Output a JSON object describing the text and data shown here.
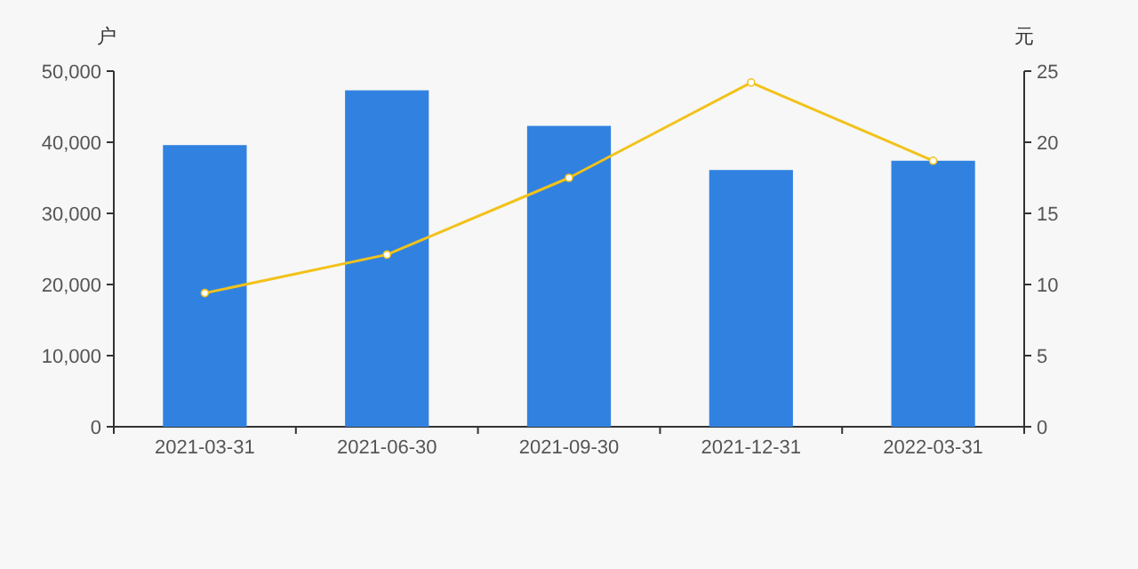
{
  "chart_data": {
    "type": "bar",
    "ylabel": "户",
    "y2label": "元",
    "categories": [
      "2021-03-31",
      "2021-06-30",
      "2021-09-30",
      "2021-12-31",
      "2022-03-31"
    ],
    "series": [
      {
        "color": "#3182e0",
        "values": [
          39600,
          47300,
          42300,
          36100,
          37400
        ]
      },
      {
        "type": "line",
        "axis": "y2",
        "color": "#f2c21a",
        "marker": "circle",
        "values": [
          9.4,
          12.1,
          17.5,
          24.2,
          18.7
        ]
      }
    ],
    "ylim": [
      0,
      50000
    ],
    "yticks": [
      0,
      {
        "value": 10000,
        "label": "10,000"
      },
      {
        "value": 20000,
        "label": "20,000"
      },
      {
        "value": 30000,
        "label": "30,000"
      },
      {
        "value": 40000,
        "label": "40,000"
      },
      {
        "value": 50000,
        "label": "50,000"
      }
    ],
    "y2lim": [
      0,
      25
    ],
    "y2ticks": [
      0,
      5,
      10,
      15,
      20,
      25
    ]
  }
}
